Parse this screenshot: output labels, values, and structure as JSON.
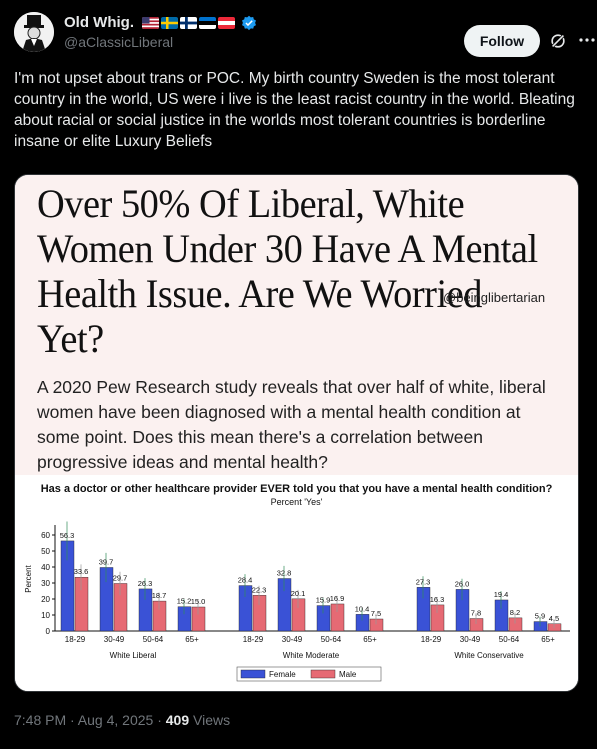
{
  "author": {
    "display_name": "Old Whig.",
    "handle": "@aClassicLiberal",
    "flags": [
      "us-flag",
      "sweden-flag",
      "finland-flag",
      "estonia-flag",
      "austria-flag"
    ]
  },
  "actions": {
    "follow_label": "Follow"
  },
  "tweet": {
    "text": "I'm not upset about trans or POC. My birth country Sweden is the most tolerant country in the world, US were i live is the least racist country in the world. Bleating about racial or social justice in the worlds most tolerant countries is borderline insane or elite Luxury Beliefs",
    "time": "7:48 PM · Aug 4, 2025 · ",
    "views_count": "409",
    "views_label": " Views"
  },
  "media": {
    "headline": "Over 50% Of Liberal, White Women Under 30 Have A Mental Health Issue. Are We Worried Yet?",
    "watermark": "@beinglibertarian",
    "summary": "A 2020 Pew Research study reveals that over half of white, liberal women have been diagnosed with a mental health condition at some point. Does this mean there's a correlation between progressive ideas and mental health?"
  },
  "chart_data": {
    "type": "bar",
    "title": "Has a doctor or other healthcare provider EVER told you that you have a mental health condition?",
    "subtitle": "Percent 'Yes'",
    "ylabel": "Percent",
    "ylim": [
      0,
      65
    ],
    "yticks": [
      "0",
      "10",
      "20",
      "30",
      "40",
      "50",
      "60"
    ],
    "groups": [
      "White Liberal",
      "White Moderate",
      "White Conservative"
    ],
    "categories": [
      "18-29",
      "30-49",
      "50-64",
      "65+"
    ],
    "series": [
      {
        "name": "Female",
        "color": "#3a52d6",
        "values": [
          [
            56.3,
            39.7,
            26.3,
            15.2
          ],
          [
            28.4,
            32.8,
            15.9,
            10.4
          ],
          [
            27.3,
            26.0,
            19.4,
            5.9
          ]
        ]
      },
      {
        "name": "Male",
        "color": "#e66a74",
        "values": [
          [
            33.6,
            29.7,
            18.7,
            15.0
          ],
          [
            22.3,
            20.1,
            16.9,
            7.5
          ],
          [
            16.3,
            7.8,
            8.2,
            4.5
          ]
        ]
      }
    ],
    "value_labels": {
      "Female": [
        [
          "56.3",
          "39.7",
          "26.3",
          "15.2"
        ],
        [
          "28.4",
          "32.8",
          "15.9",
          "10.4"
        ],
        [
          "27.3",
          "26.0",
          "19.4",
          "5.9"
        ]
      ],
      "Male": [
        [
          "33.6",
          "29.7",
          "18.7",
          "15.0"
        ],
        [
          "22.3",
          "20.1",
          "16.9",
          "7.5"
        ],
        [
          "16.3",
          "7.8",
          "8.2",
          "4.5"
        ]
      ]
    },
    "legend_position": "bottom-center"
  }
}
